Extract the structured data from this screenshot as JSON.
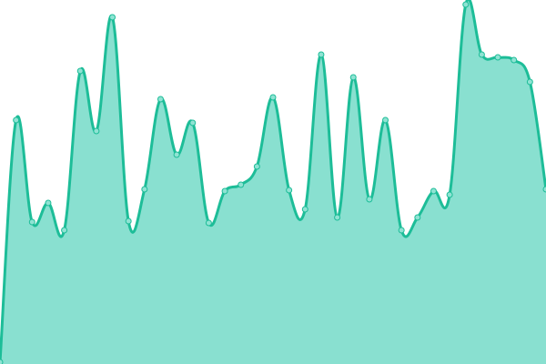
{
  "chart_data": {
    "type": "area",
    "title": "",
    "xlabel": "",
    "ylabel": "",
    "x": [
      0,
      1,
      2,
      3,
      4,
      5,
      6,
      7,
      8,
      9,
      10,
      11,
      12,
      13,
      14,
      15,
      16,
      17,
      18,
      19,
      20,
      21,
      22,
      23,
      24,
      25,
      26,
      27,
      28,
      29,
      30,
      31,
      32,
      33,
      34
    ],
    "values": [
      2,
      268,
      156,
      177,
      147,
      322,
      256,
      381,
      157,
      192,
      291,
      230,
      265,
      155,
      190,
      197,
      217,
      293,
      191,
      170,
      340,
      161,
      315,
      181,
      268,
      147,
      161,
      190,
      186,
      395,
      340,
      337,
      334,
      310,
      192
    ],
    "ylim": [
      0,
      400
    ],
    "grid": false,
    "axes_visible": false,
    "smooth": true,
    "colors": {
      "fill": "#89e0d0",
      "line": "#1dbd98",
      "marker": "#8fe3d3"
    }
  }
}
